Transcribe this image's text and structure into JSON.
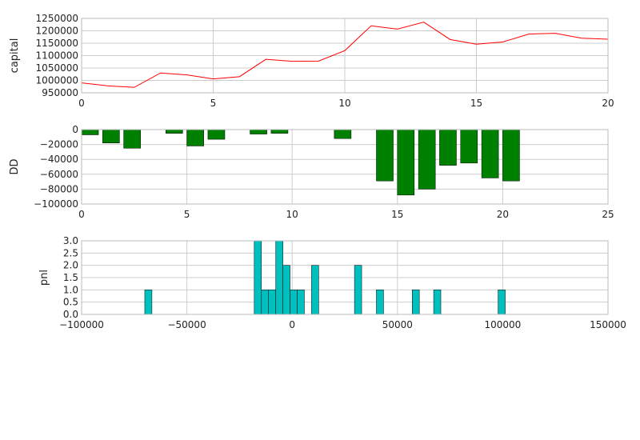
{
  "chart_data": [
    {
      "type": "line",
      "ylabel": "capital",
      "xlim": [
        0,
        20
      ],
      "ylim": [
        950000,
        1250000
      ],
      "xticks": [
        0,
        5,
        10,
        15,
        20
      ],
      "yticks": [
        950000,
        1000000,
        1050000,
        1100000,
        1150000,
        1200000,
        1250000
      ],
      "grid": true,
      "color": "#ff0000",
      "x": [
        0,
        1,
        2,
        3,
        4,
        5,
        6,
        7,
        8,
        9,
        10,
        11,
        12,
        13,
        14,
        15,
        16,
        17,
        18,
        19,
        20
      ],
      "y": [
        990000,
        978000,
        972000,
        1030000,
        1022000,
        1006000,
        1015000,
        1085000,
        1077000,
        1078000,
        1120000,
        1220000,
        1207000,
        1235000,
        1165000,
        1146000,
        1155000,
        1187000,
        1190000,
        1170000,
        1166000
      ]
    },
    {
      "type": "bar",
      "ylabel": "DD",
      "xlim": [
        0,
        25
      ],
      "ylim": [
        -100000,
        0
      ],
      "xticks": [
        0,
        5,
        10,
        15,
        20,
        25
      ],
      "yticks": [
        -100000,
        -80000,
        -60000,
        -40000,
        -20000,
        0
      ],
      "grid": true,
      "color": "#008000",
      "bar_width": 0.8,
      "x": [
        0,
        1,
        2,
        3,
        4,
        5,
        6,
        7,
        8,
        9,
        10,
        11,
        12,
        13,
        14,
        15,
        16,
        17,
        18,
        19,
        20
      ],
      "values": [
        -7000,
        -18000,
        -25000,
        0,
        -5000,
        -22000,
        -13000,
        0,
        -6000,
        -5000,
        0,
        0,
        -12000,
        0,
        -69000,
        -88000,
        -80000,
        -48000,
        -45000,
        -65000,
        -69000
      ]
    },
    {
      "type": "bar",
      "subtype": "histogram",
      "ylabel": "pnl",
      "xlim": [
        -100000,
        150000
      ],
      "ylim": [
        0,
        3
      ],
      "xticks": [
        -100000,
        -50000,
        0,
        50000,
        100000,
        150000
      ],
      "yticks": [
        0.0,
        0.5,
        1.0,
        1.5,
        2.0,
        2.5,
        3.0
      ],
      "grid": true,
      "color": "#00bfbf",
      "bin_width": 3400,
      "bins": [
        {
          "x": -70000,
          "count": 1
        },
        {
          "x": -18000,
          "count": 3
        },
        {
          "x": -14600,
          "count": 1
        },
        {
          "x": -11200,
          "count": 1
        },
        {
          "x": -7800,
          "count": 3
        },
        {
          "x": -4400,
          "count": 2
        },
        {
          "x": -1000,
          "count": 1
        },
        {
          "x": 2400,
          "count": 1
        },
        {
          "x": 9200,
          "count": 2
        },
        {
          "x": 29600,
          "count": 2
        },
        {
          "x": 40000,
          "count": 1
        },
        {
          "x": 57000,
          "count": 1
        },
        {
          "x": 67200,
          "count": 1
        },
        {
          "x": 97800,
          "count": 1
        }
      ]
    }
  ]
}
